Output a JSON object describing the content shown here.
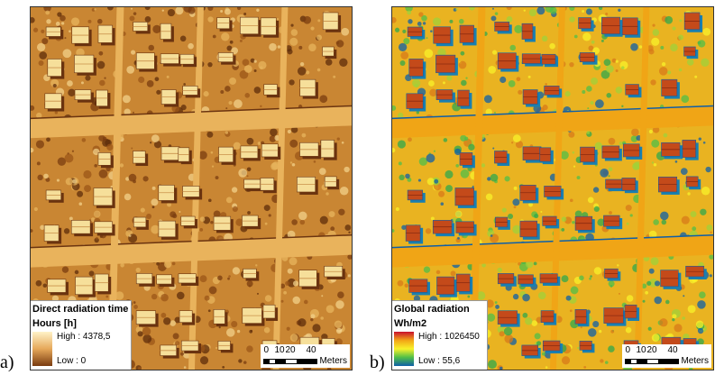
{
  "panels": [
    {
      "letter": "a)",
      "legend": {
        "title": "Direct radiation time",
        "subtitle": "Hours [h]",
        "high_label": "High : 4378,5",
        "low_label": "Low : 0",
        "ramp_colors": [
          "#fff3c9",
          "#e6a85a",
          "#7a3c10"
        ]
      },
      "scale": {
        "ticks": [
          "0",
          "10",
          "20",
          "40"
        ],
        "unit": "Meters"
      }
    },
    {
      "letter": "b)",
      "legend": {
        "title": "Global radiation",
        "subtitle": "Wh/m2",
        "high_label": "High : 1026450",
        "low_label": "Low : 55,6",
        "ramp_colors": [
          "#c8102e",
          "#f2a516",
          "#f8f22a",
          "#4fbf48",
          "#0e5fa8"
        ]
      },
      "scale": {
        "ticks": [
          "0",
          "10",
          "20",
          "40"
        ],
        "unit": "Meters"
      }
    }
  ]
}
